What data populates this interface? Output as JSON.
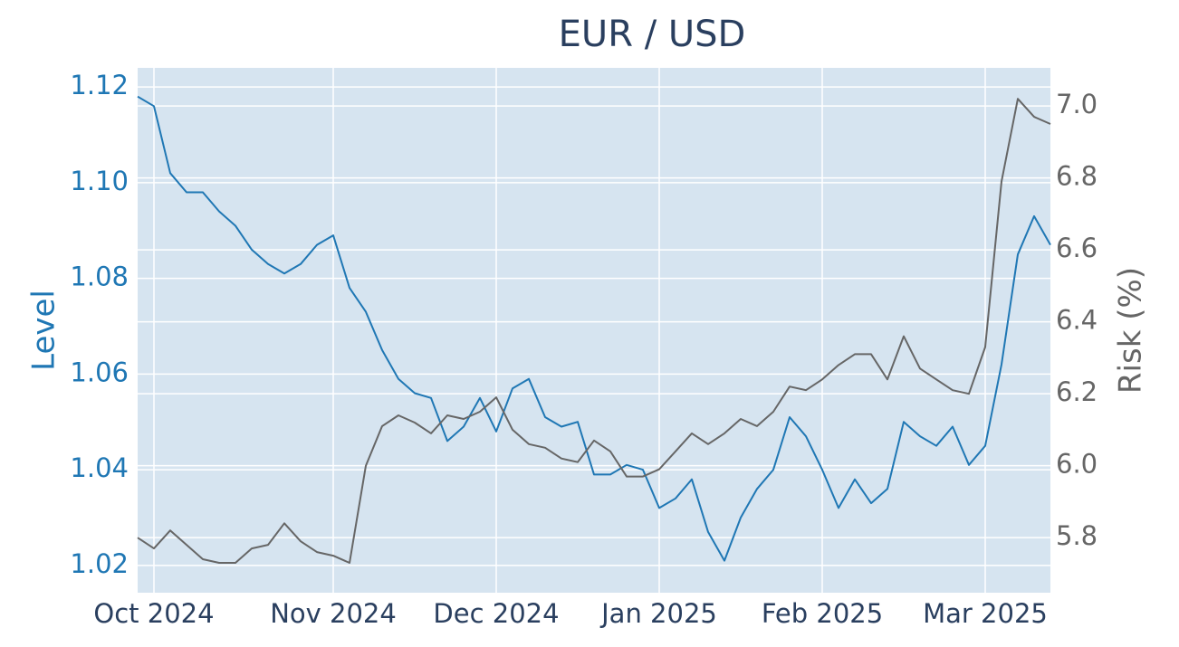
{
  "chart_data": {
    "type": "line",
    "title": "EUR / USD",
    "categories": [
      null,
      "Oct 2024",
      null,
      null,
      null,
      null,
      null,
      null,
      null,
      null,
      null,
      null,
      "Nov 2024",
      null,
      null,
      null,
      null,
      null,
      null,
      null,
      null,
      null,
      "Dec 2024",
      null,
      null,
      null,
      null,
      null,
      null,
      null,
      null,
      null,
      "Jan 2025",
      null,
      null,
      null,
      null,
      null,
      null,
      null,
      null,
      null,
      "Feb 2025",
      null,
      null,
      null,
      null,
      null,
      null,
      null,
      null,
      null,
      "Mar 2025",
      null,
      null,
      null,
      null
    ],
    "series": [
      {
        "name": "Level",
        "color": "#1f77b4",
        "axis": "y",
        "values": [
          1.118,
          1.116,
          1.102,
          1.098,
          1.098,
          1.094,
          1.091,
          1.086,
          1.083,
          1.081,
          1.083,
          1.087,
          1.089,
          1.078,
          1.073,
          1.065,
          1.059,
          1.056,
          1.055,
          1.046,
          1.049,
          1.055,
          1.048,
          1.057,
          1.059,
          1.051,
          1.049,
          1.05,
          1.039,
          1.039,
          1.041,
          1.04,
          1.032,
          1.034,
          1.038,
          1.027,
          1.021,
          1.03,
          1.036,
          1.04,
          1.051,
          1.047,
          1.04,
          1.032,
          1.038,
          1.033,
          1.036,
          1.05,
          1.047,
          1.045,
          1.049,
          1.041,
          1.045,
          1.062,
          1.085,
          1.093,
          1.087
        ]
      },
      {
        "name": "Risk (%)",
        "color": "#666666",
        "axis": "y2",
        "values": [
          5.8,
          5.77,
          5.82,
          5.78,
          5.74,
          5.73,
          5.73,
          5.77,
          5.78,
          5.84,
          5.79,
          5.76,
          5.75,
          5.73,
          6.0,
          6.11,
          6.14,
          6.12,
          6.09,
          6.14,
          6.13,
          6.15,
          6.19,
          6.1,
          6.06,
          6.05,
          6.02,
          6.01,
          6.07,
          6.04,
          5.97,
          5.97,
          5.99,
          6.04,
          6.09,
          6.06,
          6.09,
          6.13,
          6.11,
          6.15,
          6.22,
          6.21,
          6.24,
          6.28,
          6.31,
          6.31,
          6.24,
          6.36,
          6.27,
          6.24,
          6.21,
          6.2,
          6.33,
          6.79,
          7.02,
          6.97,
          6.95
        ]
      }
    ],
    "ylabel": "Level",
    "y2label": "Risk (%)",
    "ylim": [
      1.0143,
      1.124
    ],
    "yticks": [
      1.02,
      1.04,
      1.06,
      1.08,
      {
        "value": 1.1,
        "label": "1.10"
      },
      1.12
    ],
    "y2lim": [
      5.647,
      7.106
    ],
    "y2ticks": [
      5.8,
      {
        "value": 6,
        "label": "6.0"
      },
      6.2,
      6.4,
      6.6,
      6.8,
      {
        "value": 7,
        "label": "7.0"
      }
    ],
    "grid": true
  }
}
